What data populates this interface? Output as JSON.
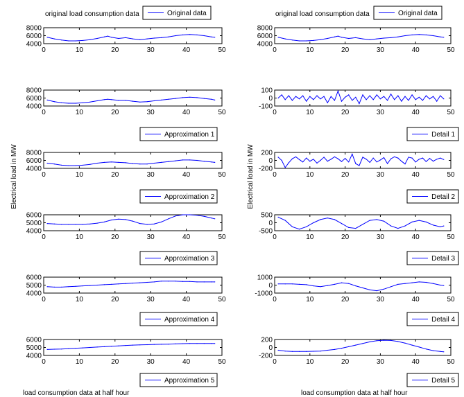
{
  "figure": {
    "left_ylabel": "Electrical load in MW",
    "right_ylabel": "Electrical load in MW",
    "left_title": "original load consumption data",
    "right_title": "original load consumption data",
    "left_xlabel": "load consumption data at half hour",
    "right_xlabel": "load consumption data at half hour"
  },
  "chart_data": [
    {
      "type": "line",
      "column": "left",
      "row": 0,
      "legend": "Original data",
      "xlim": [
        0,
        50
      ],
      "xticks": [
        0,
        10,
        20,
        30,
        40,
        50
      ],
      "ylim": [
        4000,
        8000
      ],
      "yticks": [
        4000,
        6000,
        8000
      ],
      "color": "#0000ff",
      "x": [
        1,
        3,
        5,
        7,
        9,
        11,
        13,
        15,
        17,
        18,
        19,
        21,
        23,
        25,
        27,
        29,
        31,
        33,
        35,
        37,
        39,
        41,
        43,
        45,
        47,
        48
      ],
      "values": [
        5600,
        5200,
        4900,
        4700,
        4700,
        4800,
        5000,
        5300,
        5700,
        5900,
        5600,
        5300,
        5500,
        5200,
        5000,
        5200,
        5400,
        5500,
        5700,
        6000,
        6200,
        6300,
        6200,
        6000,
        5700,
        5600
      ]
    },
    {
      "type": "line",
      "column": "left",
      "row": 1,
      "legend": "Approximation 1",
      "xlim": [
        0,
        50
      ],
      "xticks": [
        0,
        10,
        20,
        30,
        40,
        50
      ],
      "ylim": [
        4000,
        8000
      ],
      "yticks": [
        4000,
        6000,
        8000
      ],
      "color": "#0000ff",
      "x": [
        1,
        3,
        5,
        7,
        9,
        11,
        13,
        15,
        17,
        18,
        19,
        21,
        23,
        25,
        27,
        29,
        31,
        33,
        35,
        37,
        39,
        41,
        43,
        45,
        47,
        48
      ],
      "values": [
        5500,
        5100,
        4800,
        4700,
        4700,
        4800,
        5000,
        5300,
        5600,
        5700,
        5600,
        5400,
        5400,
        5200,
        5000,
        5100,
        5300,
        5500,
        5700,
        5900,
        6100,
        6200,
        6100,
        5900,
        5700,
        5500
      ]
    },
    {
      "type": "line",
      "column": "left",
      "row": 2,
      "legend": "Approximation 2",
      "xlim": [
        0,
        50
      ],
      "xticks": [
        0,
        10,
        20,
        30,
        40,
        50
      ],
      "ylim": [
        4000,
        8000
      ],
      "yticks": [
        4000,
        6000,
        8000
      ],
      "color": "#0000ff",
      "x": [
        1,
        3,
        5,
        7,
        9,
        11,
        13,
        15,
        17,
        19,
        21,
        23,
        25,
        27,
        29,
        31,
        33,
        35,
        37,
        39,
        41,
        43,
        45,
        47,
        48
      ],
      "values": [
        5300,
        5100,
        4800,
        4700,
        4700,
        4800,
        5000,
        5300,
        5500,
        5600,
        5500,
        5400,
        5200,
        5100,
        5100,
        5300,
        5500,
        5700,
        5900,
        6100,
        6100,
        6000,
        5800,
        5600,
        5500
      ]
    },
    {
      "type": "line",
      "column": "left",
      "row": 3,
      "legend": "Approximation 3",
      "xlim": [
        0,
        50
      ],
      "xticks": [
        0,
        10,
        20,
        30,
        40,
        50
      ],
      "ylim": [
        4000,
        6000
      ],
      "yticks": [
        4000,
        5000,
        6000
      ],
      "color": "#0000ff",
      "x": [
        1,
        3,
        5,
        7,
        9,
        11,
        13,
        15,
        17,
        19,
        21,
        23,
        25,
        27,
        29,
        31,
        33,
        35,
        37,
        39,
        41,
        43,
        45,
        47,
        48
      ],
      "values": [
        4900,
        4850,
        4800,
        4800,
        4800,
        4800,
        4850,
        4950,
        5100,
        5350,
        5450,
        5400,
        5200,
        4900,
        4800,
        4850,
        5100,
        5500,
        5850,
        6000,
        6000,
        5950,
        5800,
        5600,
        5500
      ]
    },
    {
      "type": "line",
      "column": "left",
      "row": 4,
      "legend": "Approximation 4",
      "xlim": [
        0,
        50
      ],
      "xticks": [
        0,
        10,
        20,
        30,
        40,
        50
      ],
      "ylim": [
        4000,
        6000
      ],
      "yticks": [
        4000,
        5000,
        6000
      ],
      "color": "#0000ff",
      "x": [
        1,
        3,
        5,
        7,
        9,
        11,
        13,
        15,
        17,
        19,
        21,
        23,
        25,
        27,
        29,
        31,
        33,
        35,
        37,
        39,
        41,
        43,
        45,
        47,
        48
      ],
      "values": [
        4800,
        4750,
        4750,
        4800,
        4850,
        4900,
        4950,
        5000,
        5050,
        5100,
        5150,
        5200,
        5250,
        5300,
        5350,
        5400,
        5500,
        5500,
        5500,
        5450,
        5450,
        5400,
        5400,
        5400,
        5400
      ]
    },
    {
      "type": "line",
      "column": "left",
      "row": 5,
      "legend": "Approximation 5",
      "xlim": [
        0,
        50
      ],
      "xticks": [
        0,
        10,
        20,
        30,
        40,
        50
      ],
      "ylim": [
        4000,
        6000
      ],
      "yticks": [
        4000,
        5000,
        6000
      ],
      "color": "#0000ff",
      "x": [
        1,
        3,
        5,
        7,
        9,
        11,
        13,
        15,
        17,
        19,
        21,
        23,
        25,
        27,
        29,
        31,
        33,
        35,
        37,
        39,
        41,
        43,
        45,
        47,
        48
      ],
      "values": [
        4750,
        4780,
        4800,
        4850,
        4900,
        4950,
        5000,
        5050,
        5100,
        5150,
        5200,
        5250,
        5300,
        5320,
        5350,
        5380,
        5400,
        5420,
        5450,
        5480,
        5500,
        5500,
        5500,
        5500,
        5500
      ]
    },
    {
      "type": "line",
      "column": "right",
      "row": 0,
      "legend": "Original data",
      "xlim": [
        0,
        50
      ],
      "xticks": [
        0,
        10,
        20,
        30,
        40,
        50
      ],
      "ylim": [
        4000,
        8000
      ],
      "yticks": [
        4000,
        6000,
        8000
      ],
      "color": "#0000ff",
      "x": [
        1,
        3,
        5,
        7,
        9,
        11,
        13,
        15,
        17,
        18,
        19,
        21,
        23,
        25,
        27,
        29,
        31,
        33,
        35,
        37,
        39,
        41,
        43,
        45,
        47,
        48
      ],
      "values": [
        5600,
        5200,
        4900,
        4700,
        4700,
        4800,
        5000,
        5300,
        5700,
        5900,
        5600,
        5300,
        5500,
        5200,
        5000,
        5200,
        5400,
        5500,
        5700,
        6000,
        6200,
        6300,
        6200,
        6000,
        5700,
        5600
      ]
    },
    {
      "type": "line",
      "column": "right",
      "row": 1,
      "legend": "Detail 1",
      "xlim": [
        0,
        50
      ],
      "xticks": [
        0,
        10,
        20,
        30,
        40,
        50
      ],
      "ylim": [
        -100,
        100
      ],
      "yticks": [
        -100,
        0,
        100
      ],
      "ytick_labels": [
        "-100",
        "0",
        "100"
      ],
      "color": "#0000ff",
      "x": [
        1,
        2,
        3,
        4,
        5,
        6,
        7,
        8,
        9,
        10,
        11,
        12,
        13,
        14,
        15,
        16,
        17,
        18,
        19,
        20,
        21,
        22,
        23,
        24,
        25,
        26,
        27,
        28,
        29,
        30,
        31,
        32,
        33,
        34,
        35,
        36,
        37,
        38,
        39,
        40,
        41,
        42,
        43,
        44,
        45,
        46,
        47,
        48
      ],
      "values": [
        0,
        40,
        -20,
        30,
        -30,
        20,
        -10,
        30,
        -40,
        20,
        -20,
        30,
        -10,
        20,
        -60,
        20,
        -30,
        90,
        -40,
        10,
        40,
        -30,
        10,
        -70,
        40,
        -20,
        30,
        -20,
        40,
        -10,
        20,
        -30,
        50,
        -20,
        30,
        -40,
        20,
        -30,
        40,
        -20,
        10,
        -30,
        30,
        -10,
        20,
        -40,
        30,
        -10
      ]
    },
    {
      "type": "line",
      "column": "right",
      "row": 2,
      "legend": "Detail 2",
      "xlim": [
        0,
        50
      ],
      "xticks": [
        0,
        10,
        20,
        30,
        40,
        50
      ],
      "ylim": [
        -200,
        200
      ],
      "yticks": [
        -200,
        0,
        200
      ],
      "ytick_labels": [
        "-200",
        "0",
        "200"
      ],
      "color": "#0000ff",
      "x": [
        1,
        2,
        3,
        4,
        5,
        6,
        7,
        8,
        9,
        10,
        11,
        12,
        13,
        14,
        15,
        16,
        17,
        18,
        19,
        20,
        21,
        22,
        23,
        24,
        25,
        26,
        27,
        28,
        29,
        30,
        31,
        32,
        33,
        34,
        35,
        36,
        37,
        38,
        39,
        40,
        41,
        42,
        43,
        44,
        45,
        46,
        47,
        48
      ],
      "values": [
        80,
        0,
        -180,
        -60,
        40,
        90,
        20,
        -40,
        60,
        -20,
        30,
        -70,
        0,
        80,
        -20,
        30,
        90,
        40,
        -30,
        50,
        -40,
        160,
        -80,
        -130,
        80,
        30,
        -50,
        60,
        -40,
        10,
        70,
        -80,
        40,
        90,
        60,
        -20,
        -90,
        80,
        60,
        -40,
        30,
        60,
        -30,
        50,
        -20,
        30,
        60,
        20
      ]
    },
    {
      "type": "line",
      "column": "right",
      "row": 3,
      "legend": "Detail 3",
      "xlim": [
        0,
        50
      ],
      "xticks": [
        0,
        10,
        20,
        30,
        40,
        50
      ],
      "ylim": [
        -500,
        500
      ],
      "yticks": [
        -500,
        0,
        500
      ],
      "ytick_labels": [
        "-500",
        "0",
        "500"
      ],
      "color": "#0000ff",
      "x": [
        1,
        3,
        5,
        7,
        9,
        11,
        13,
        15,
        17,
        19,
        21,
        23,
        25,
        27,
        29,
        31,
        33,
        35,
        37,
        39,
        41,
        43,
        45,
        47,
        48
      ],
      "values": [
        350,
        150,
        -250,
        -400,
        -250,
        0,
        200,
        300,
        200,
        -50,
        -300,
        -350,
        -100,
        150,
        200,
        100,
        -200,
        -350,
        -200,
        50,
        150,
        50,
        -150,
        -250,
        -200
      ]
    },
    {
      "type": "line",
      "column": "right",
      "row": 4,
      "legend": "Detail 4",
      "xlim": [
        0,
        50
      ],
      "xticks": [
        0,
        10,
        20,
        30,
        40,
        50
      ],
      "ylim": [
        -1000,
        1000
      ],
      "yticks": [
        -1000,
        0,
        1000
      ],
      "ytick_labels": [
        "-1000",
        "0",
        "1000"
      ],
      "color": "#0000ff",
      "x": [
        1,
        3,
        5,
        7,
        9,
        11,
        13,
        15,
        17,
        19,
        21,
        23,
        25,
        27,
        29,
        31,
        33,
        35,
        37,
        39,
        41,
        43,
        45,
        47,
        48
      ],
      "values": [
        150,
        150,
        150,
        100,
        50,
        -100,
        -200,
        -50,
        100,
        300,
        200,
        -100,
        -350,
        -600,
        -700,
        -500,
        -200,
        100,
        200,
        300,
        400,
        350,
        200,
        0,
        -50
      ]
    },
    {
      "type": "line",
      "column": "right",
      "row": 5,
      "legend": "Detail 5",
      "xlim": [
        0,
        50
      ],
      "xticks": [
        0,
        10,
        20,
        30,
        40,
        50
      ],
      "ylim": [
        -200,
        200
      ],
      "yticks": [
        -200,
        0,
        200
      ],
      "ytick_labels": [
        "-200",
        "0",
        "200"
      ],
      "color": "#0000ff",
      "x": [
        1,
        3,
        5,
        7,
        9,
        11,
        13,
        15,
        17,
        19,
        21,
        23,
        25,
        27,
        29,
        31,
        33,
        35,
        37,
        39,
        41,
        43,
        45,
        47,
        48
      ],
      "values": [
        -70,
        -90,
        -100,
        -100,
        -100,
        -95,
        -90,
        -70,
        -50,
        -20,
        20,
        60,
        100,
        140,
        170,
        180,
        175,
        150,
        110,
        60,
        10,
        -40,
        -80,
        -100,
        -110
      ]
    }
  ]
}
